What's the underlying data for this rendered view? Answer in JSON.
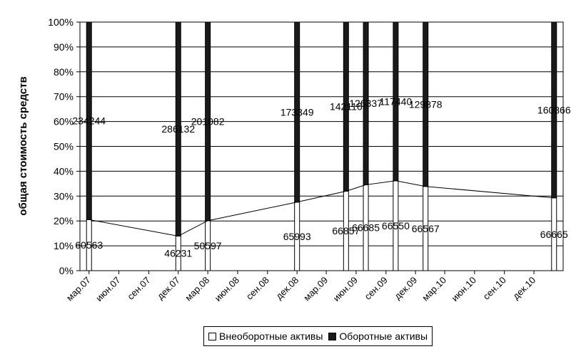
{
  "chart_data": {
    "type": "bar",
    "stacked": "percent",
    "ylabel": "общая стоимость средств",
    "ylim": [
      0,
      100
    ],
    "y_ticks": [
      "0%",
      "10%",
      "20%",
      "30%",
      "40%",
      "50%",
      "60%",
      "70%",
      "80%",
      "90%",
      "100%"
    ],
    "x_ticks": [
      "мар.07",
      "июн.07",
      "сен.07",
      "дек.07",
      "мар.08",
      "июн.08",
      "сен.08",
      "дек.08",
      "мар.09",
      "июн.09",
      "сен.09",
      "дек.09",
      "мар.10",
      "июн.10",
      "сен.10",
      "дек.10"
    ],
    "bars": [
      {
        "x": "2007-03-01",
        "values": [
          60563,
          234244
        ]
      },
      {
        "x": "2007-12-01",
        "values": [
          46231,
          286132
        ]
      },
      {
        "x": "2008-03-01",
        "values": [
          50597,
          201082
        ]
      },
      {
        "x": "2008-12-01",
        "values": [
          65993,
          173349
        ]
      },
      {
        "x": "2009-05-01",
        "values": [
          66857,
          142116
        ]
      },
      {
        "x": "2009-07-01",
        "values": [
          66685,
          126337
        ]
      },
      {
        "x": "2009-10-01",
        "values": [
          66550,
          117440
        ]
      },
      {
        "x": "2010-01-01",
        "values": [
          66567,
          129878
        ]
      },
      {
        "x": "2011-02-01",
        "values": [
          66665,
          160866
        ]
      }
    ],
    "series": [
      {
        "name": "Внеоборотные активы",
        "color": "#ffffff"
      },
      {
        "name": "Оборотные активы",
        "color": "#1a1a1a"
      }
    ],
    "legend_position": "bottom",
    "grid": true
  }
}
